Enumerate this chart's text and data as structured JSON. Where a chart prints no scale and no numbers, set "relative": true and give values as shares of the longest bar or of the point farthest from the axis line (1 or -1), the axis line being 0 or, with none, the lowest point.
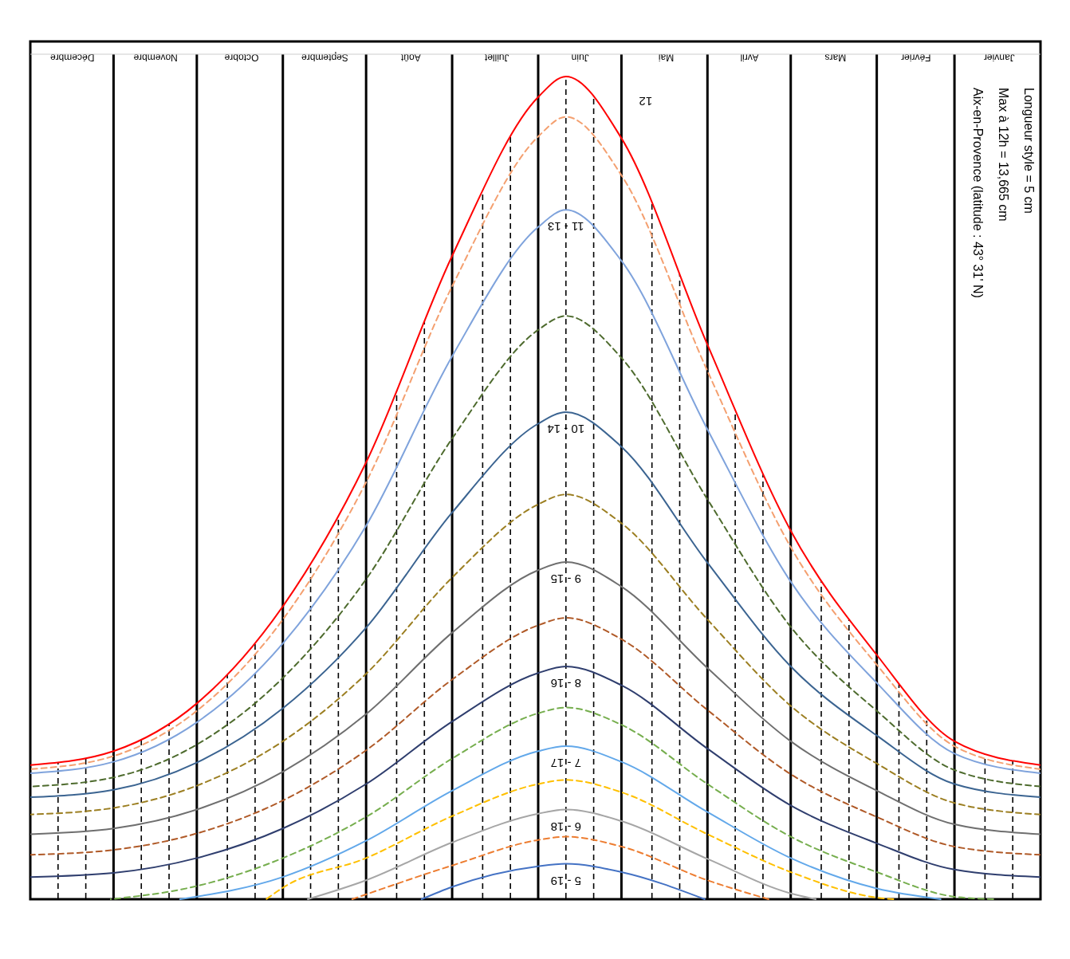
{
  "chart_data": {
    "type": "line",
    "relative": true,
    "xlim": [
      "--12-31",
      "--01-01"
    ],
    "xticks": [
      {
        "value": "--01-16",
        "label": "Janvier"
      },
      {
        "value": "--02-15",
        "label": "Février"
      },
      {
        "value": "--03-16",
        "label": "Mars"
      },
      {
        "value": "--04-16",
        "label": "Avril"
      },
      {
        "value": "--05-16",
        "label": "Mai"
      },
      {
        "value": "--06-16",
        "label": "Juin"
      },
      {
        "value": "--07-16",
        "label": "Juillet"
      },
      {
        "value": "--08-16",
        "label": "Août"
      },
      {
        "value": "--09-16",
        "label": "Septembre"
      },
      {
        "value": "--10-16",
        "label": "Octobre"
      },
      {
        "value": "--11-16",
        "label": "Novembre"
      },
      {
        "value": "--12-16",
        "label": "Décembre"
      }
    ],
    "annotations": [
      "Longueur style = 5 cm",
      "Max à 12h = 13,665 cm",
      "Aix-en-Provence (latitude : 43° 31' N)"
    ],
    "ref_lines": [
      {
        "axis": "x",
        "value": "--02-01",
        "line_style": "solid"
      },
      {
        "axis": "x",
        "value": "--03-01",
        "line_style": "solid"
      },
      {
        "axis": "x",
        "value": "--04-01",
        "line_style": "solid"
      },
      {
        "axis": "x",
        "value": "--05-01",
        "line_style": "solid"
      },
      {
        "axis": "x",
        "value": "--06-01",
        "line_style": "solid"
      },
      {
        "axis": "x",
        "value": "--07-01",
        "line_style": "solid"
      },
      {
        "axis": "x",
        "value": "--08-01",
        "line_style": "solid"
      },
      {
        "axis": "x",
        "value": "--09-01",
        "line_style": "solid"
      },
      {
        "axis": "x",
        "value": "--10-01",
        "line_style": "solid"
      },
      {
        "axis": "x",
        "value": "--11-01",
        "line_style": "solid"
      },
      {
        "axis": "x",
        "value": "--12-01",
        "line_style": "solid"
      },
      {
        "axis": "x",
        "value": "--01-11",
        "line_style": "dashed"
      },
      {
        "axis": "x",
        "value": "--01-21",
        "line_style": "dashed"
      },
      {
        "axis": "x",
        "value": "--02-11",
        "line_style": "dashed"
      },
      {
        "axis": "x",
        "value": "--02-21",
        "line_style": "dashed"
      },
      {
        "axis": "x",
        "value": "--03-11",
        "line_style": "dashed"
      },
      {
        "axis": "x",
        "value": "--03-21",
        "line_style": "dashed"
      },
      {
        "axis": "x",
        "value": "--04-11",
        "line_style": "dashed"
      },
      {
        "axis": "x",
        "value": "--04-21",
        "line_style": "dashed"
      },
      {
        "axis": "x",
        "value": "--05-11",
        "line_style": "dashed"
      },
      {
        "axis": "x",
        "value": "--05-21",
        "line_style": "dashed"
      },
      {
        "axis": "x",
        "value": "--06-11",
        "line_style": "dashed"
      },
      {
        "axis": "x",
        "value": "--06-21",
        "line_style": "dashed"
      },
      {
        "axis": "x",
        "value": "--07-11",
        "line_style": "dashed"
      },
      {
        "axis": "x",
        "value": "--07-21",
        "line_style": "dashed"
      },
      {
        "axis": "x",
        "value": "--08-11",
        "line_style": "dashed"
      },
      {
        "axis": "x",
        "value": "--08-21",
        "line_style": "dashed"
      },
      {
        "axis": "x",
        "value": "--09-11",
        "line_style": "dashed"
      },
      {
        "axis": "x",
        "value": "--09-21",
        "line_style": "dashed"
      },
      {
        "axis": "x",
        "value": "--10-11",
        "line_style": "dashed"
      },
      {
        "axis": "x",
        "value": "--10-21",
        "line_style": "dashed"
      },
      {
        "axis": "x",
        "value": "--11-11",
        "line_style": "dashed"
      },
      {
        "axis": "x",
        "value": "--11-21",
        "line_style": "dashed"
      },
      {
        "axis": "x",
        "value": "--12-11",
        "line_style": "dashed"
      },
      {
        "axis": "x",
        "value": "--12-21",
        "line_style": "dashed"
      }
    ],
    "x": [
      "--01-01",
      "--02-01",
      "--03-01",
      "--04-01",
      "--05-01",
      "--06-01",
      "--06-21",
      "--07-01",
      "--08-01",
      "--09-01",
      "--10-01",
      "--11-01",
      "--12-01",
      "--12-31"
    ],
    "series": [
      {
        "name": "12",
        "color": "#ff0000",
        "line_style": "solid",
        "values": [
          0.163,
          0.192,
          0.297,
          0.448,
          0.674,
          0.925,
          1,
          0.975,
          0.782,
          0.531,
          0.356,
          0.238,
          0.18,
          0.163
        ]
      },
      {
        "color": "#f4a070",
        "line_style": "dashed",
        "values": [
          0.158,
          0.186,
          0.285,
          0.428,
          0.642,
          0.88,
          0.951,
          0.927,
          0.745,
          0.507,
          0.34,
          0.229,
          0.174,
          0.158
        ]
      },
      {
        "name": "11 - 13",
        "color": "#7fa3dc",
        "line_style": "solid",
        "values": [
          0.153,
          0.177,
          0.263,
          0.386,
          0.571,
          0.776,
          0.838,
          0.817,
          0.66,
          0.454,
          0.311,
          0.215,
          0.167,
          0.153
        ]
      },
      {
        "color": "#4e6b2e",
        "line_style": "dashed",
        "values": [
          0.137,
          0.157,
          0.229,
          0.331,
          0.486,
          0.658,
          0.709,
          0.692,
          0.56,
          0.389,
          0.269,
          0.188,
          0.148,
          0.137
        ]
      },
      {
        "name": "10 - 14",
        "color": "#3b6491",
        "line_style": "solid",
        "values": [
          0.124,
          0.14,
          0.199,
          0.283,
          0.409,
          0.55,
          0.592,
          0.578,
          0.47,
          0.33,
          0.232,
          0.166,
          0.133,
          0.124
        ]
      },
      {
        "color": "#9c7f22",
        "line_style": "dashed",
        "values": [
          0.103,
          0.117,
          0.165,
          0.235,
          0.34,
          0.457,
          0.492,
          0.48,
          0.391,
          0.274,
          0.192,
          0.138,
          0.111,
          0.103
        ]
      },
      {
        "name": "9 - 15",
        "color": "#6f6f6f",
        "line_style": "solid",
        "values": [
          0.079,
          0.091,
          0.132,
          0.192,
          0.281,
          0.38,
          0.41,
          0.4,
          0.324,
          0.225,
          0.155,
          0.109,
          0.086,
          0.079
        ]
      },
      {
        "color": "#b05a28",
        "line_style": "dashed",
        "values": [
          0.054,
          0.064,
          0.1,
          0.152,
          0.23,
          0.316,
          0.342,
          0.333,
          0.267,
          0.181,
          0.12,
          0.08,
          0.06,
          0.054
        ]
      },
      {
        "name": "8 - 16",
        "color": "#2f3e6e",
        "line_style": "solid",
        "values": [
          0.027,
          0.036,
          0.068,
          0.114,
          0.183,
          0.26,
          0.283,
          0.275,
          0.216,
          0.14,
          0.086,
          0.05,
          0.032,
          0.027
        ]
      },
      {
        "color": "#76ae4e",
        "line_style": "dashed",
        "x": [
          "--01-18",
          "--02-01",
          "--03-01",
          "--04-01",
          "--05-01",
          "--06-01",
          "--06-21",
          "--07-01",
          "--08-01",
          "--09-01",
          "--10-01",
          "--11-01",
          "--12-02"
        ],
        "values": [
          0,
          0.003,
          0.033,
          0.076,
          0.14,
          0.212,
          0.233,
          0.226,
          0.171,
          0.1,
          0.05,
          0.016,
          0
        ]
      },
      {
        "name": "7 - 17",
        "color": "#62a8ea",
        "line_style": "solid",
        "x": [
          "--02-06",
          "--03-01",
          "--04-01",
          "--05-01",
          "--06-01",
          "--06-21",
          "--07-01",
          "--08-01",
          "--09-01",
          "--10-01",
          "--11-07"
        ],
        "values": [
          0,
          0.013,
          0.05,
          0.106,
          0.167,
          0.186,
          0.18,
          0.132,
          0.071,
          0.027,
          0
        ]
      },
      {
        "color": "#ffc000",
        "line_style": "dashed",
        "x": [
          "--02-23",
          "--03-01",
          "--04-01",
          "--05-01",
          "--06-01",
          "--06-21",
          "--07-01",
          "--08-01",
          "--09-01",
          "--10-01",
          "--10-07"
        ],
        "values": [
          0,
          0.002,
          0.033,
          0.079,
          0.13,
          0.145,
          0.14,
          0.101,
          0.05,
          0.014,
          0
        ]
      },
      {
        "name": "6 - 18",
        "color": "#a6a6a6",
        "line_style": "solid",
        "x": [
          "--03-23",
          "--04-01",
          "--05-01",
          "--06-01",
          "--06-21",
          "--07-01",
          "--08-01",
          "--09-01",
          "--09-22"
        ],
        "values": [
          0,
          0.007,
          0.049,
          0.095,
          0.109,
          0.104,
          0.069,
          0.023,
          0
        ]
      },
      {
        "color": "#ed7d31",
        "line_style": "dashed",
        "x": [
          "--04-09",
          "--05-01",
          "--06-01",
          "--06-21",
          "--07-01",
          "--08-01",
          "--09-06"
        ],
        "values": [
          0,
          0.023,
          0.064,
          0.076,
          0.072,
          0.041,
          0
        ]
      },
      {
        "name": "5 - 19",
        "color": "#4472c4",
        "line_style": "solid",
        "x": [
          "--05-02",
          "--06-01",
          "--06-21",
          "--07-01",
          "--08-01",
          "--08-12"
        ],
        "values": [
          0,
          0.033,
          0.043,
          0.04,
          0.015,
          0
        ]
      }
    ]
  }
}
